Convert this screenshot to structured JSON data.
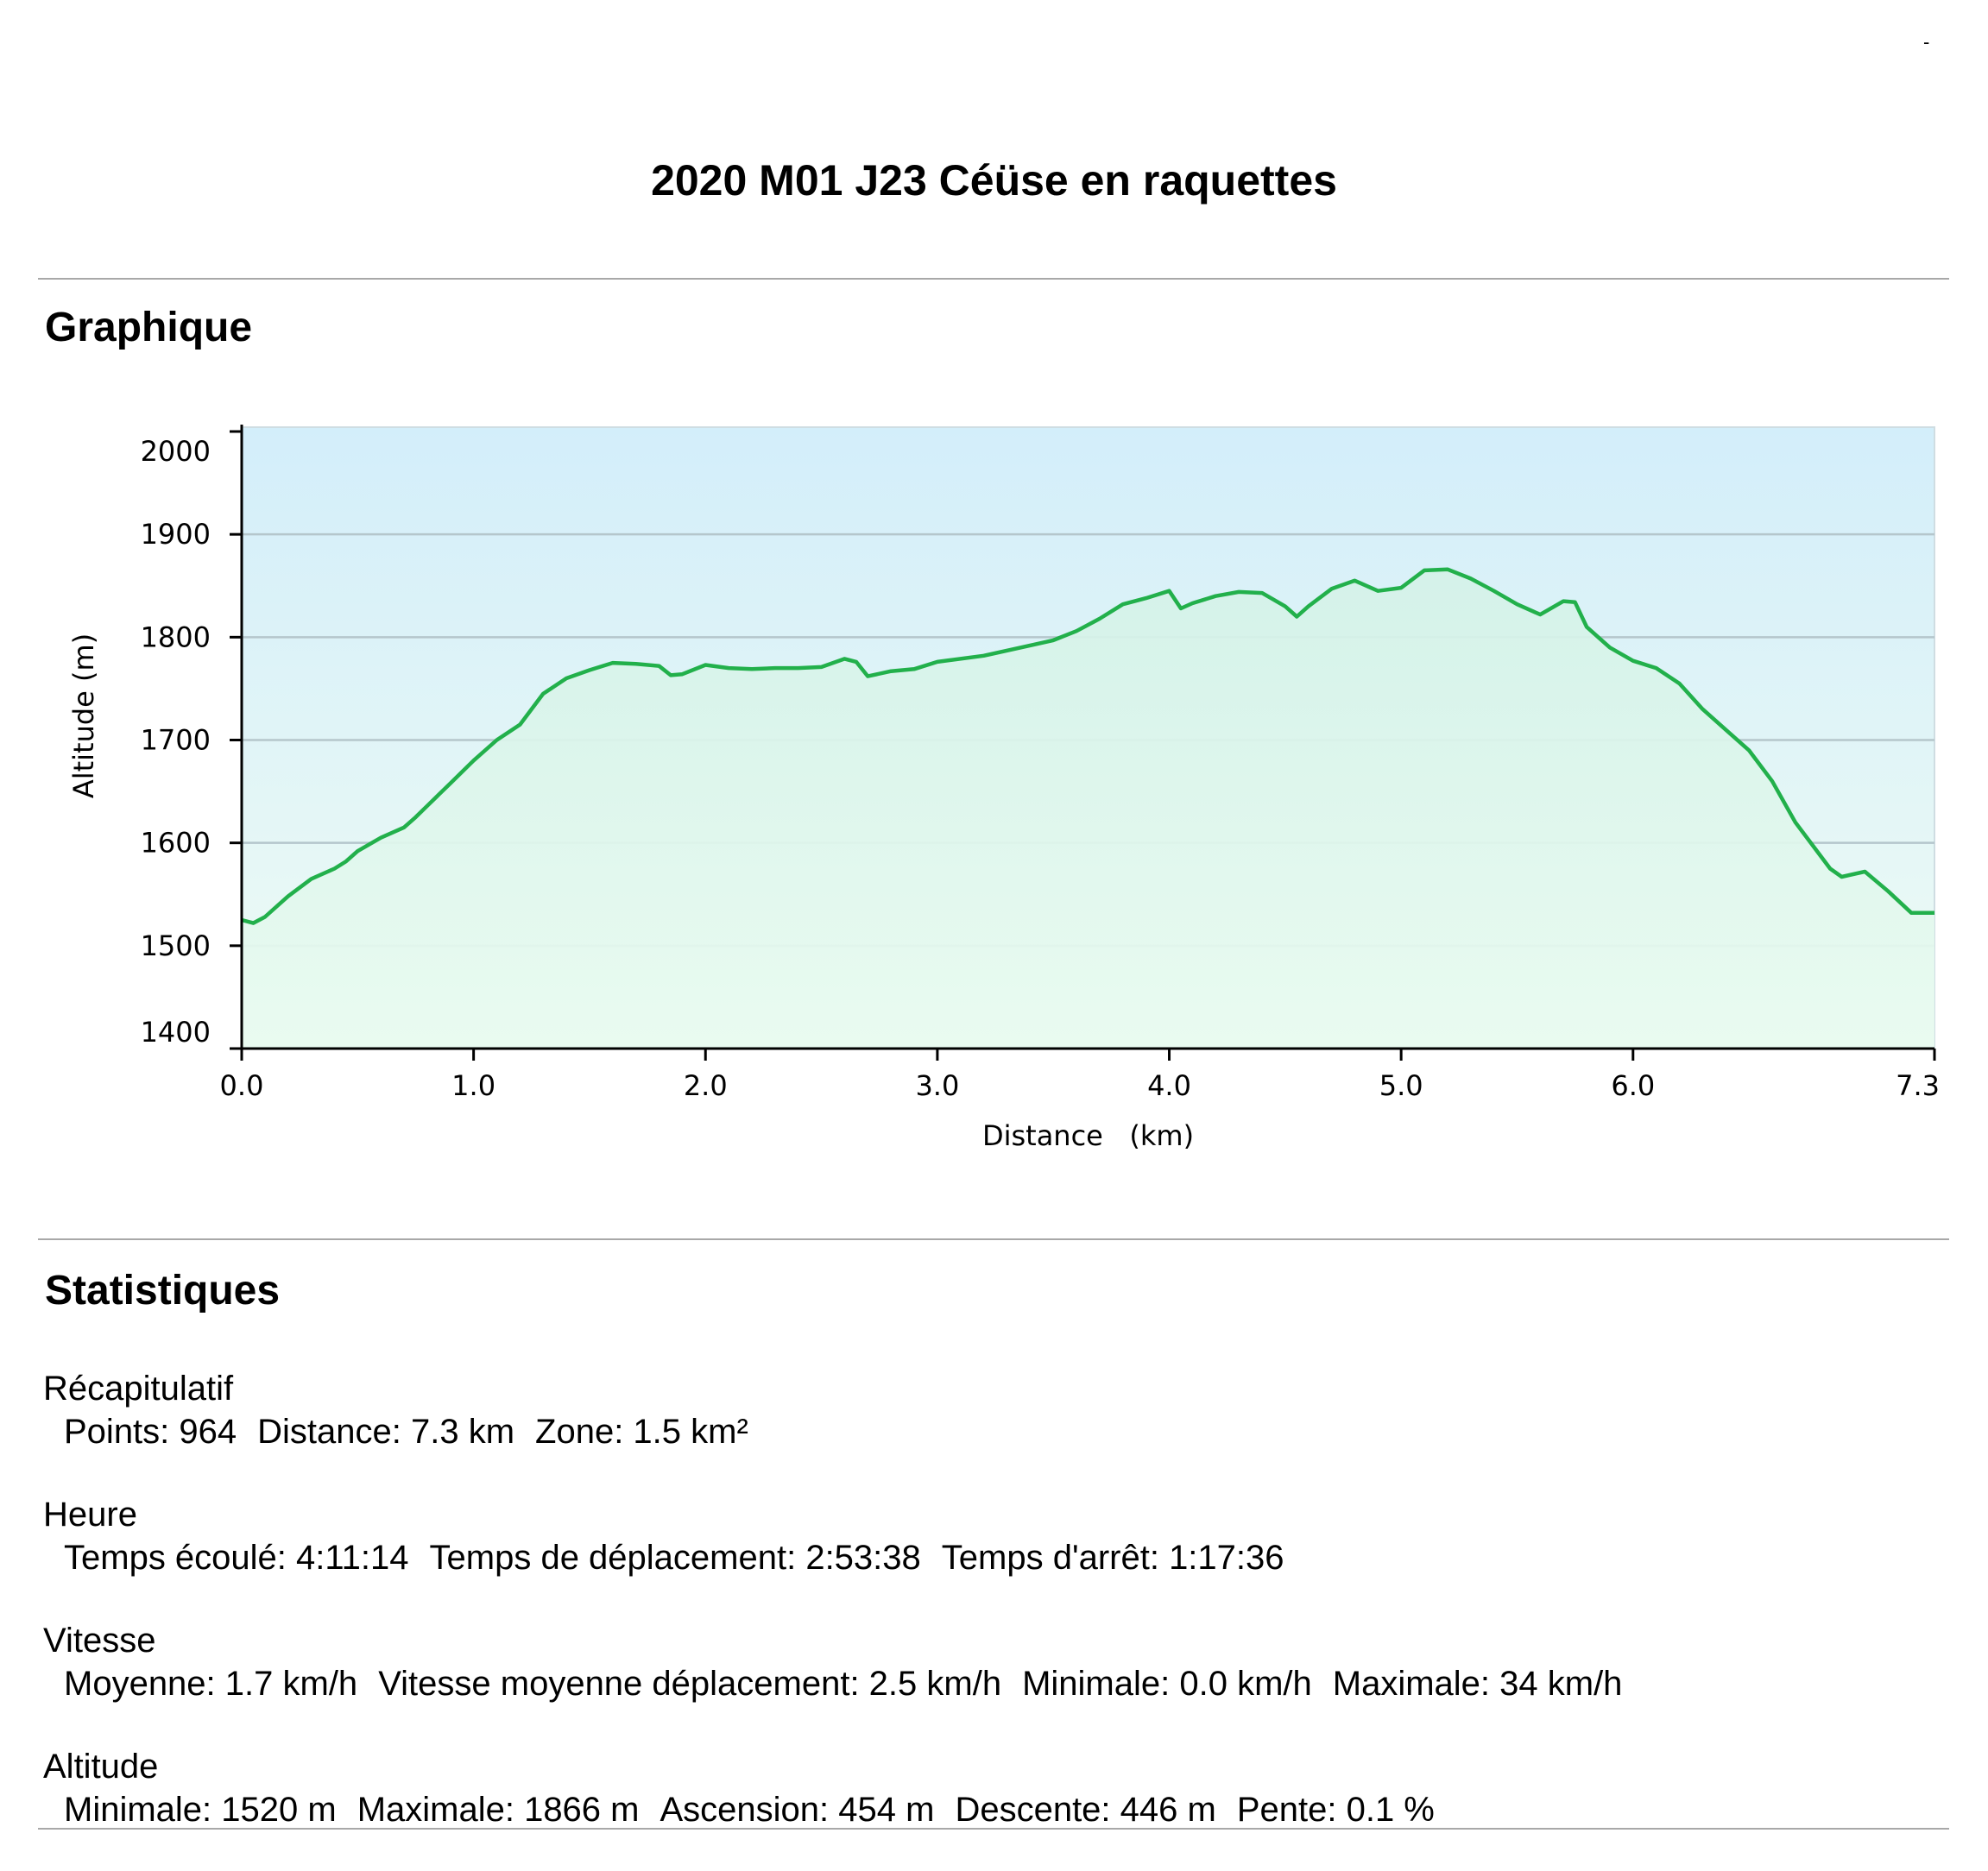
{
  "corner_mark": "-",
  "title": "2020 M01 J23 Céüse en raquettes",
  "sections": {
    "chart_heading": "Graphique",
    "stats_heading": "Statistiques"
  },
  "colors": {
    "line": "#22b04b",
    "fill_top": "#d9f2ec",
    "sky_top": "#d3eefa",
    "sky_bottom": "#eefbf4",
    "grid": "#b5c6cc"
  },
  "chart_data": {
    "type": "area",
    "xlabel": "Distance   (km)",
    "ylabel": "Altitude (m)",
    "xlim": [
      0,
      7.3
    ],
    "ylim": [
      1400,
      2000
    ],
    "xticks": [
      "0.0",
      "1.0",
      "2.0",
      "3.0",
      "4.0",
      "5.0",
      "6.0",
      "7.3"
    ],
    "yticks": [
      "2000",
      "1900",
      "1800",
      "1700",
      "1600",
      "1500",
      "1400"
    ],
    "grid": true,
    "x": [
      0,
      0.05,
      0.1,
      0.2,
      0.3,
      0.4,
      0.45,
      0.5,
      0.6,
      0.7,
      0.75,
      0.8,
      0.9,
      1.0,
      1.1,
      1.2,
      1.3,
      1.4,
      1.5,
      1.6,
      1.7,
      1.8,
      1.85,
      1.9,
      2.0,
      2.1,
      2.2,
      2.3,
      2.4,
      2.5,
      2.6,
      2.65,
      2.7,
      2.8,
      2.9,
      3.0,
      3.2,
      3.4,
      3.5,
      3.6,
      3.7,
      3.8,
      3.9,
      4.0,
      4.05,
      4.1,
      4.2,
      4.3,
      4.4,
      4.5,
      4.55,
      4.6,
      4.7,
      4.8,
      4.9,
      5.0,
      5.1,
      5.2,
      5.3,
      5.4,
      5.5,
      5.6,
      5.7,
      5.75,
      5.8,
      5.9,
      6.0,
      6.1,
      6.2,
      6.3,
      6.4,
      6.5,
      6.6,
      6.7,
      6.8,
      6.85,
      6.9,
      7.0,
      7.1,
      7.2,
      7.3
    ],
    "y": [
      1525,
      1522,
      1528,
      1548,
      1565,
      1575,
      1582,
      1592,
      1605,
      1615,
      1625,
      1636,
      1658,
      1680,
      1700,
      1715,
      1745,
      1760,
      1768,
      1775,
      1774,
      1772,
      1763,
      1764,
      1773,
      1770,
      1769,
      1770,
      1770,
      1771,
      1779,
      1776,
      1762,
      1767,
      1769,
      1776,
      1782,
      1792,
      1797,
      1806,
      1818,
      1832,
      1838,
      1845,
      1828,
      1833,
      1840,
      1844,
      1843,
      1830,
      1820,
      1830,
      1847,
      1855,
      1845,
      1848,
      1865,
      1866,
      1857,
      1845,
      1832,
      1822,
      1835,
      1834,
      1810,
      1790,
      1777,
      1770,
      1755,
      1730,
      1710,
      1690,
      1660,
      1620,
      1590,
      1575,
      1567,
      1572,
      1553,
      1532,
      1532
    ]
  },
  "stats": [
    {
      "label": "Récapitulatif",
      "items": [
        "Points: 964",
        "Distance: 7.3 km",
        "Zone: 1.5 km²"
      ]
    },
    {
      "label": "Heure",
      "items": [
        "Temps écoulé: 4:11:14",
        "Temps de déplacement: 2:53:38",
        "Temps d'arrêt: 1:17:36"
      ]
    },
    {
      "label": "Vitesse",
      "items": [
        "Moyenne: 1.7 km/h",
        "Vitesse moyenne déplacement: 2.5 km/h",
        "Minimale: 0.0 km/h",
        "Maximale: 34 km/h"
      ]
    },
    {
      "label": "Altitude",
      "items": [
        "Minimale: 1520 m",
        "Maximale: 1866 m",
        "Ascension: 454 m",
        "Descente: 446 m",
        "Pente: 0.1 %"
      ]
    }
  ]
}
